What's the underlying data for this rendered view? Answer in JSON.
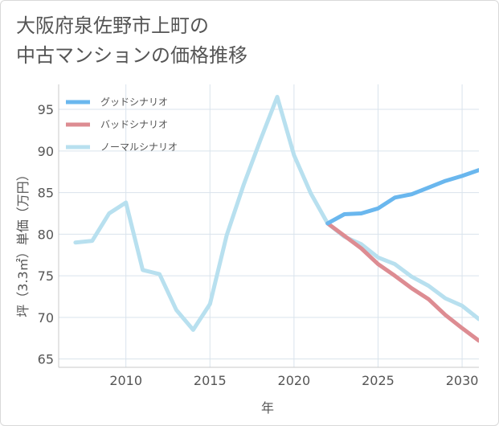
{
  "chart_data": {
    "type": "line",
    "title": "大阪府泉佐野市上町の\n中古マンションの価格推移",
    "xlabel": "年",
    "ylabel": "坪（3.3㎡）単価（万円）",
    "xlim": [
      2006,
      2031
    ],
    "ylim": [
      64,
      98
    ],
    "xticks": [
      2010,
      2015,
      2020,
      2025,
      2030
    ],
    "yticks": [
      65,
      70,
      75,
      80,
      85,
      90,
      95
    ],
    "grid": true,
    "legend_position": "top-left",
    "series": [
      {
        "name": "グッドシナリオ",
        "color": "#6ab7ee",
        "x": [
          2022,
          2023,
          2024,
          2025,
          2026,
          2027,
          2028,
          2029,
          2030,
          2031
        ],
        "y": [
          81.3,
          82.4,
          82.5,
          83.1,
          84.4,
          84.8,
          85.6,
          86.4,
          87.0,
          87.7
        ]
      },
      {
        "name": "バッドシナリオ",
        "color": "#dd8c92",
        "x": [
          2022,
          2023,
          2024,
          2025,
          2026,
          2027,
          2028,
          2029,
          2030,
          2031
        ],
        "y": [
          81.3,
          79.8,
          78.3,
          76.4,
          75.0,
          73.5,
          72.2,
          70.3,
          68.7,
          67.2
        ]
      },
      {
        "name": "ノーマルシナリオ",
        "color": "#b8e0ef",
        "x": [
          2007,
          2008,
          2009,
          2010,
          2011,
          2012,
          2013,
          2014,
          2015,
          2016,
          2017,
          2018,
          2019,
          2020,
          2021,
          2022,
          2023,
          2024,
          2025,
          2026,
          2027,
          2028,
          2029,
          2030,
          2031
        ],
        "y": [
          79.0,
          79.2,
          82.5,
          83.8,
          75.7,
          75.2,
          70.9,
          68.5,
          71.6,
          79.9,
          85.9,
          91.3,
          96.5,
          89.5,
          84.9,
          81.3,
          79.7,
          78.8,
          77.2,
          76.4,
          74.9,
          73.8,
          72.3,
          71.4,
          69.8
        ]
      }
    ]
  }
}
